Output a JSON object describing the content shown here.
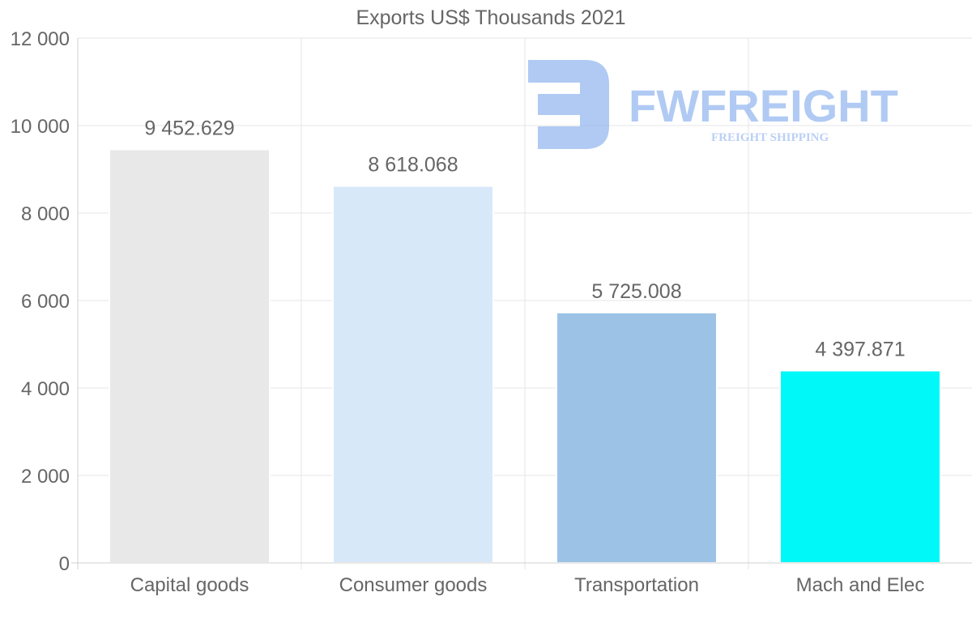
{
  "chart_data": {
    "type": "bar",
    "title": "Exports US$ Thousands 2021",
    "categories": [
      "Capital goods",
      "Consumer goods",
      "Transportation",
      "Mach and Elec"
    ],
    "values": [
      9452.629,
      8618.068,
      5725.008,
      4397.871
    ],
    "value_labels": [
      "9 452.629",
      "8 618.068",
      "5 725.008",
      "4 397.871"
    ],
    "colors": [
      "#e8e8e8",
      "#d7e8f9",
      "#9cc3e6",
      "#00f8f8"
    ],
    "y_ticks": [
      0,
      2000,
      4000,
      6000,
      8000,
      10000,
      12000
    ],
    "y_tick_labels": [
      "0",
      "2 000",
      "4 000",
      "6 000",
      "8 000",
      "10 000",
      "12 000"
    ],
    "ylim": [
      0,
      12000
    ],
    "xlabel": "",
    "ylabel": "",
    "grid": true,
    "legend": "none"
  },
  "watermark": {
    "name": "FWFREIGHT",
    "tagline": "FREIGHT SHIPPING",
    "color": "#8fb4ee"
  }
}
